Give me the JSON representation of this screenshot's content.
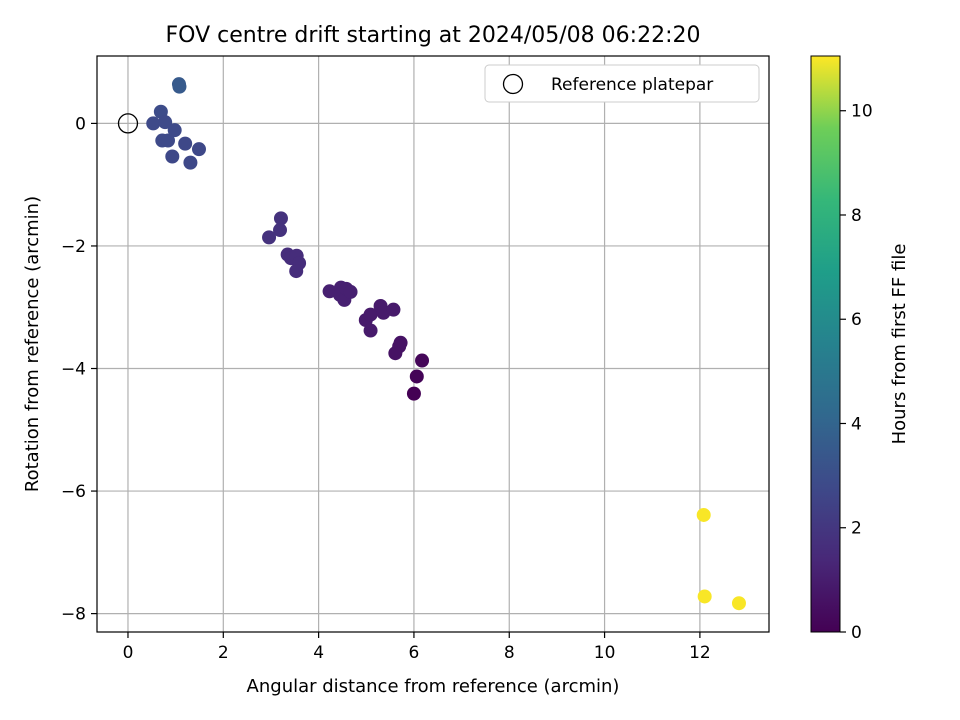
{
  "chart_data": {
    "type": "scatter",
    "title": "FOV centre drift starting at 2024/05/08 06:22:20",
    "xlabel": "Angular distance from reference (arcmin)",
    "ylabel": "Rotation from reference (arcmin)",
    "xlim": [
      -0.65,
      13.45
    ],
    "ylim": [
      -8.3,
      1.1
    ],
    "xticks": [
      0,
      2,
      4,
      6,
      8,
      10,
      12
    ],
    "yticks": [
      0,
      -2,
      -4,
      -6,
      -8
    ],
    "xtick_labels": [
      "0",
      "2",
      "4",
      "6",
      "8",
      "10",
      "12"
    ],
    "ytick_labels": [
      "0",
      "−2",
      "−4",
      "−6",
      "−8"
    ],
    "grid": true,
    "legend": {
      "position": "top-right",
      "entries": [
        "Reference platepar"
      ]
    },
    "reference_point": {
      "x": 0,
      "y": 0,
      "label": "Reference platepar"
    },
    "colorbar": {
      "label": "Hours from first FF file",
      "colormap": "viridis",
      "range": [
        0,
        11.05
      ],
      "ticks": [
        0,
        2,
        4,
        6,
        8,
        10
      ],
      "tick_labels": [
        "0",
        "2",
        "4",
        "6",
        "8",
        "10"
      ]
    },
    "points": [
      {
        "x": 1.07,
        "y": 0.64,
        "c": 3.5
      },
      {
        "x": 1.08,
        "y": 0.6,
        "c": 3.5
      },
      {
        "x": 0.69,
        "y": 0.19,
        "c": 2.9
      },
      {
        "x": 0.53,
        "y": 0.0,
        "c": 2.8
      },
      {
        "x": 0.78,
        "y": 0.02,
        "c": 2.8
      },
      {
        "x": 0.98,
        "y": -0.11,
        "c": 2.8
      },
      {
        "x": 0.72,
        "y": -0.28,
        "c": 2.8
      },
      {
        "x": 0.84,
        "y": -0.28,
        "c": 2.8
      },
      {
        "x": 1.2,
        "y": -0.33,
        "c": 2.7
      },
      {
        "x": 1.49,
        "y": -0.42,
        "c": 2.7
      },
      {
        "x": 0.93,
        "y": -0.54,
        "c": 2.7
      },
      {
        "x": 1.31,
        "y": -0.64,
        "c": 2.7
      },
      {
        "x": 3.21,
        "y": -1.55,
        "c": 1.8
      },
      {
        "x": 3.19,
        "y": -1.74,
        "c": 1.8
      },
      {
        "x": 2.96,
        "y": -1.86,
        "c": 1.8
      },
      {
        "x": 3.35,
        "y": -2.14,
        "c": 1.6
      },
      {
        "x": 3.42,
        "y": -2.2,
        "c": 1.6
      },
      {
        "x": 3.54,
        "y": -2.16,
        "c": 1.6
      },
      {
        "x": 3.59,
        "y": -2.28,
        "c": 1.6
      },
      {
        "x": 3.53,
        "y": -2.41,
        "c": 1.6
      },
      {
        "x": 4.23,
        "y": -2.74,
        "c": 1.1
      },
      {
        "x": 4.47,
        "y": -2.68,
        "c": 1.1
      },
      {
        "x": 4.45,
        "y": -2.8,
        "c": 1.1
      },
      {
        "x": 4.54,
        "y": -2.88,
        "c": 1.1
      },
      {
        "x": 4.58,
        "y": -2.7,
        "c": 1.1
      },
      {
        "x": 4.67,
        "y": -2.75,
        "c": 1.1
      },
      {
        "x": 4.99,
        "y": -3.21,
        "c": 0.9
      },
      {
        "x": 5.09,
        "y": -3.12,
        "c": 0.9
      },
      {
        "x": 5.09,
        "y": -3.38,
        "c": 0.9
      },
      {
        "x": 5.3,
        "y": -2.98,
        "c": 0.9
      },
      {
        "x": 5.36,
        "y": -3.09,
        "c": 0.9
      },
      {
        "x": 5.57,
        "y": -3.04,
        "c": 0.9
      },
      {
        "x": 5.72,
        "y": -3.58,
        "c": 0.6
      },
      {
        "x": 5.69,
        "y": -3.64,
        "c": 0.6
      },
      {
        "x": 5.61,
        "y": -3.75,
        "c": 0.6
      },
      {
        "x": 6.17,
        "y": -3.87,
        "c": 0.2
      },
      {
        "x": 6.06,
        "y": -4.13,
        "c": 0.1
      },
      {
        "x": 6.0,
        "y": -4.41,
        "c": 0.0
      },
      {
        "x": 12.08,
        "y": -6.39,
        "c": 11.0
      },
      {
        "x": 12.1,
        "y": -7.72,
        "c": 11.0
      },
      {
        "x": 12.82,
        "y": -7.83,
        "c": 11.0
      }
    ]
  }
}
